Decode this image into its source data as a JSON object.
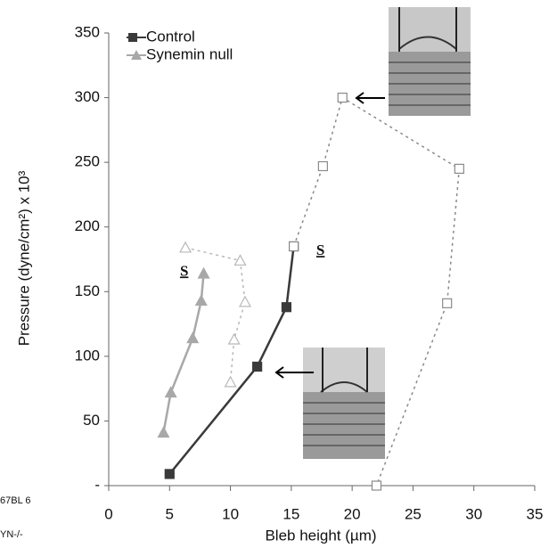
{
  "chart_data": {
    "type": "line",
    "x_label": "Bleb height (µm)",
    "y_label": "Pressure (dyne/cm²) x 10³",
    "xlim": [
      0,
      35
    ],
    "xticks": [
      0,
      5,
      10,
      15,
      20,
      25,
      30,
      35
    ],
    "ylim": [
      0,
      350
    ],
    "yticks": [
      {
        "value": 0,
        "label": "-"
      },
      50,
      100,
      150,
      200,
      250,
      300,
      350
    ],
    "series": [
      {
        "name": "Control",
        "color": "#3a3a3a",
        "marker": "square",
        "filled": true,
        "dash": false,
        "x": [
          5,
          12.2,
          14.6,
          15.2
        ],
        "values": [
          9,
          92,
          138,
          185
        ]
      },
      {
        "name": "Synemin null",
        "color": "#a8a8a8",
        "marker": "triangle",
        "filled": true,
        "dash": false,
        "x": [
          4.5,
          5.1,
          6.9,
          7.6,
          7.8
        ],
        "values": [
          41,
          72,
          114,
          143,
          164
        ]
      },
      {
        "color": "#8a8a8a",
        "marker": "square",
        "filled": false,
        "dash": true,
        "x": [
          15.2,
          17.6,
          19.2,
          28.8,
          27.8,
          22
        ],
        "values": [
          185,
          247,
          300,
          245,
          141,
          0
        ]
      },
      {
        "color": "#b8b8b8",
        "marker": "triangle",
        "filled": false,
        "dash": true,
        "x": [
          6.3,
          10.8,
          11.2,
          10.3,
          10
        ],
        "values": [
          184,
          174,
          142,
          113,
          80
        ]
      }
    ],
    "annotations": [
      {
        "text": "S",
        "x": 6.2,
        "y": 165
      },
      {
        "text": "S",
        "x": 17.4,
        "y": 181
      }
    ],
    "cropped_labels": [
      "67BL 6",
      "YN-/-"
    ]
  }
}
